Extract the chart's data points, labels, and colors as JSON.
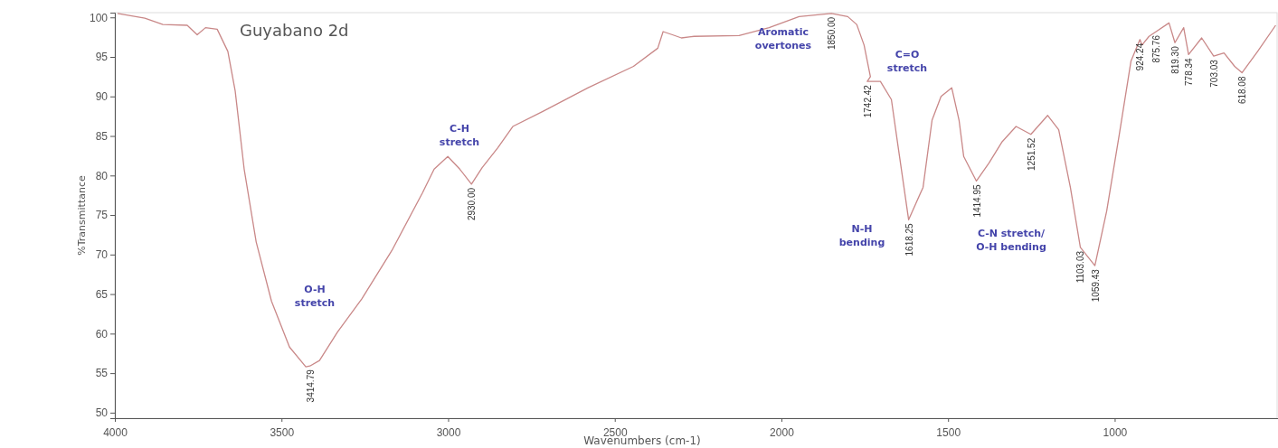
{
  "chart_data": {
    "type": "line",
    "title": "Guyabano 2d",
    "xlabel": "Wavenumbers (cm-1)",
    "ylabel": "%Transmittance",
    "xlim": [
      4000,
      510
    ],
    "xticks": [
      4000,
      3500,
      3000,
      2500,
      2000,
      1500,
      1000
    ],
    "ylim": [
      49.3,
      100.6
    ],
    "yticks": [
      50,
      55,
      60,
      65,
      70,
      75,
      80,
      85,
      90,
      95,
      100
    ],
    "grid": false,
    "series": [
      {
        "color": "#c98888",
        "x": [
          3992,
          3910,
          3856,
          3783,
          3753,
          3728,
          3693,
          3661,
          3639,
          3612,
          3576,
          3530,
          3476,
          3427,
          3414.79,
          3386,
          3332,
          3259,
          3169,
          3077,
          3042,
          3001,
          2965,
          2930,
          2898,
          2851,
          2806,
          2716,
          2580,
          2444,
          2371,
          2355,
          2327,
          2300,
          2262,
          2127,
          2037,
          1947,
          1850,
          1801,
          1774,
          1752,
          1733,
          1742.42,
          1703,
          1670,
          1648,
          1618.25,
          1575,
          1548,
          1521,
          1489,
          1467,
          1453,
          1414.95,
          1377,
          1339,
          1296,
          1251.52,
          1201,
          1168,
          1133,
          1103.03,
          1059.43,
          1024,
          987,
          951,
          924.24,
          918,
          897,
          875.76,
          837,
          819.3,
          793,
          778.34,
          739,
          703.03,
          672,
          640,
          618.08,
          571,
          517
        ],
        "values": [
          100.5,
          99.9,
          99.1,
          99,
          97.8,
          98.7,
          98.5,
          95.7,
          90.7,
          80.8,
          71.6,
          64.1,
          58.3,
          55.8,
          55.9,
          56.6,
          60.2,
          64.4,
          70.5,
          77.8,
          80.8,
          82.4,
          80.8,
          78.9,
          81,
          83.5,
          86.2,
          88.1,
          91.1,
          93.8,
          96.1,
          98.2,
          97.8,
          97.4,
          97.6,
          97.7,
          98.7,
          100.1,
          100.5,
          100.1,
          99.1,
          96.5,
          92.5,
          91.9,
          91.9,
          89.6,
          83.1,
          74.4,
          78.5,
          87,
          90,
          91.1,
          87,
          82.4,
          79.3,
          81.6,
          84.2,
          86.2,
          85.2,
          87.6,
          85.8,
          78.5,
          70.9,
          68.6,
          75.5,
          85,
          94.5,
          97.2,
          96.5,
          97.6,
          98.2,
          99.3,
          96.8,
          98.7,
          95.3,
          97.4,
          95.1,
          95.5,
          93.8,
          93,
          95.7,
          99
        ]
      }
    ],
    "annotations": [
      {
        "text": "3414.79",
        "x": 3414.79,
        "y": 55.9
      },
      {
        "text": "2930.00",
        "x": 2930,
        "y": 78.9
      },
      {
        "text": "1850.00",
        "x": 1850,
        "y": 100.5
      },
      {
        "text": "1742.42",
        "x": 1742.42,
        "y": 91.9
      },
      {
        "text": "1618.25",
        "x": 1618.25,
        "y": 74.4
      },
      {
        "text": "1414.95",
        "x": 1414.95,
        "y": 79.3
      },
      {
        "text": "1251.52",
        "x": 1251.52,
        "y": 85.2
      },
      {
        "text": "1103.03",
        "x": 1103.03,
        "y": 70.9
      },
      {
        "text": "1059.43",
        "x": 1059.43,
        "y": 68.6
      },
      {
        "text": "924.24",
        "x": 924.24,
        "y": 97.2
      },
      {
        "text": "875.76",
        "x": 875.76,
        "y": 98.2
      },
      {
        "text": "819.30",
        "x": 819.3,
        "y": 96.8
      },
      {
        "text": "778.34",
        "x": 778.34,
        "y": 95.3
      },
      {
        "text": "703.03",
        "x": 703.03,
        "y": 95.1
      },
      {
        "text": "618.08",
        "x": 618.08,
        "y": 93
      },
      "O-H\nstretch",
      "C-H\nstretch",
      "Aromatic\novertones",
      "C=O\nstretch",
      "N-H\nbending",
      "C-N stretch/\nO-H bending"
    ]
  }
}
